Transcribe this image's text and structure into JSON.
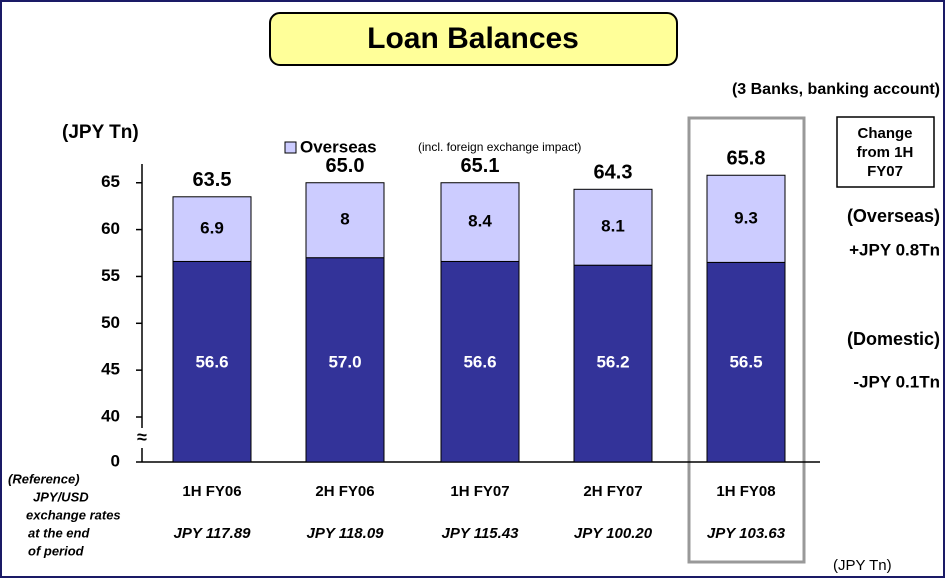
{
  "chart_data": {
    "type": "stacked_bar",
    "title": "Loan Balances",
    "subtitle": "(3 Banks, banking account)",
    "y_label": "(JPY Tn)",
    "categories": [
      "1H FY06",
      "2H FY06",
      "1H FY07",
      "2H FY07",
      "1H FY08"
    ],
    "series": [
      {
        "color": "#333399",
        "values": [
          56.6,
          57.0,
          56.6,
          56.2,
          56.5
        ],
        "value_labels": [
          "56.6",
          "57.0",
          "56.6",
          "56.2",
          "56.5"
        ]
      },
      {
        "name": "Overseas",
        "color": "#ccccff",
        "values": [
          6.9,
          8.0,
          8.4,
          8.1,
          9.3
        ]
      }
    ],
    "totals": [
      63.5,
      65.0,
      65.1,
      64.3,
      65.8
    ],
    "total_labels": [
      "63.5",
      "65.0",
      "65.1",
      "64.3",
      "65.8"
    ],
    "legend_note": "(incl. foreign exchange impact)",
    "ylim": [
      0,
      67
    ],
    "yticks": [
      0,
      40,
      45,
      50,
      55,
      60,
      65
    ],
    "axis_break": true,
    "break_symbol": "≈",
    "highlight_category": 4,
    "change_box": [
      "Change",
      "from 1H",
      "FY07"
    ],
    "annotations": [
      "(Overseas)",
      "+JPY 0.8Tn",
      "(Domestic)",
      "-JPY 0.1Tn"
    ],
    "reference_label": [
      "(Reference)",
      "JPY/USD",
      "exchange rates",
      "at the end",
      "of period"
    ],
    "exchange_rates": [
      "JPY 117.89",
      "JPY 118.09",
      "JPY 115.43",
      "JPY 100.20",
      "JPY 103.63"
    ],
    "unit_note": "(JPY Tn)"
  }
}
